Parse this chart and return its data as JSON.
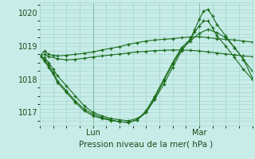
{
  "xlabel": "Pression niveau de la mer( hPa )",
  "bg_color": "#c8ece8",
  "grid_color": "#a8d8d0",
  "line_color": "#1a6b1a",
  "xlim": [
    0,
    48
  ],
  "ylim": [
    1016.6,
    1020.3
  ],
  "yticks": [
    1017,
    1018,
    1019,
    1020
  ],
  "xtick_positions": [
    12,
    36
  ],
  "xtick_labels": [
    "Lun",
    "Mar"
  ],
  "vline_positions": [
    12,
    36
  ],
  "lines": [
    {
      "x": [
        0,
        1,
        2,
        3,
        4,
        6,
        8,
        10,
        12,
        14,
        16,
        18,
        20,
        22,
        24,
        26,
        28,
        30,
        32,
        34,
        36,
        38,
        40,
        42,
        44,
        46,
        48
      ],
      "y": [
        1018.7,
        1018.85,
        1018.75,
        1018.72,
        1018.7,
        1018.72,
        1018.75,
        1018.78,
        1018.82,
        1018.88,
        1018.93,
        1018.98,
        1019.05,
        1019.1,
        1019.15,
        1019.18,
        1019.2,
        1019.22,
        1019.25,
        1019.27,
        1019.28,
        1019.25,
        1019.22,
        1019.2,
        1019.18,
        1019.15,
        1019.12
      ]
    },
    {
      "x": [
        0,
        1,
        2,
        4,
        6,
        8,
        10,
        12,
        14,
        16,
        18,
        20,
        22,
        24,
        26,
        28,
        30,
        32,
        34,
        36,
        38,
        40,
        42,
        44,
        46,
        48
      ],
      "y": [
        1018.7,
        1018.75,
        1018.68,
        1018.62,
        1018.58,
        1018.6,
        1018.63,
        1018.67,
        1018.7,
        1018.73,
        1018.76,
        1018.79,
        1018.82,
        1018.84,
        1018.86,
        1018.87,
        1018.88,
        1018.88,
        1018.87,
        1018.85,
        1018.82,
        1018.79,
        1018.76,
        1018.73,
        1018.7,
        1018.68
      ]
    },
    {
      "x": [
        0,
        1,
        2,
        3,
        4,
        6,
        8,
        10,
        12,
        14,
        16,
        18,
        20,
        22,
        24,
        26,
        28,
        30,
        32,
        34,
        35,
        36,
        37,
        38,
        39,
        40,
        42,
        44,
        46,
        48
      ],
      "y": [
        1018.7,
        1018.65,
        1018.5,
        1018.3,
        1018.1,
        1017.8,
        1017.5,
        1017.2,
        1017.0,
        1016.9,
        1016.82,
        1016.78,
        1016.75,
        1016.82,
        1017.0,
        1017.4,
        1017.85,
        1018.35,
        1018.85,
        1019.2,
        1019.5,
        1019.8,
        1020.05,
        1020.1,
        1019.9,
        1019.65,
        1019.3,
        1018.95,
        1018.6,
        1018.05
      ]
    },
    {
      "x": [
        0,
        1,
        2,
        3,
        4,
        6,
        8,
        10,
        12,
        14,
        16,
        18,
        20,
        22,
        24,
        26,
        28,
        30,
        32,
        34,
        35,
        36,
        37,
        38,
        39,
        40,
        42,
        44,
        46,
        48
      ],
      "y": [
        1018.7,
        1018.6,
        1018.42,
        1018.2,
        1017.95,
        1017.65,
        1017.35,
        1017.1,
        1016.95,
        1016.85,
        1016.78,
        1016.72,
        1016.7,
        1016.78,
        1017.05,
        1017.5,
        1018.0,
        1018.5,
        1018.95,
        1019.2,
        1019.42,
        1019.6,
        1019.75,
        1019.75,
        1019.55,
        1019.3,
        1019.0,
        1018.65,
        1018.3,
        1018.0
      ]
    },
    {
      "x": [
        0,
        1,
        2,
        3,
        4,
        6,
        8,
        10,
        12,
        14,
        16,
        18,
        20,
        22,
        24,
        26,
        28,
        30,
        32,
        34,
        36,
        38,
        40,
        42,
        44,
        46,
        48
      ],
      "y": [
        1018.7,
        1018.55,
        1018.35,
        1018.15,
        1017.9,
        1017.6,
        1017.3,
        1017.05,
        1016.9,
        1016.82,
        1016.76,
        1016.72,
        1016.7,
        1016.78,
        1017.0,
        1017.45,
        1017.95,
        1018.45,
        1018.9,
        1019.15,
        1019.38,
        1019.5,
        1019.4,
        1019.25,
        1018.95,
        1018.6,
        1018.25
      ]
    }
  ]
}
